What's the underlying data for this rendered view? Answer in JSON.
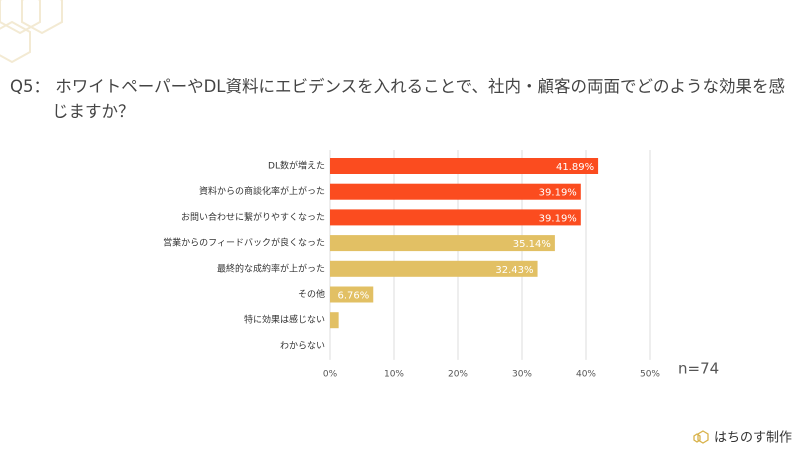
{
  "title": "Q5： ホワイトペーパーやDL資料にエビデンスを入れることで、社内・顧客の両面でどのような効果を感じますか？",
  "chart_data": {
    "type": "bar",
    "orientation": "horizontal",
    "categories": [
      "DL数が増えた",
      "資料からの商談化率が上がった",
      "お問い合わせに繋がりやすくなった",
      "営業からのフィードバックが良くなった",
      "最終的な成約率が上がった",
      "その他",
      "特に効果は感じない",
      "わからない"
    ],
    "values": [
      41.89,
      39.19,
      39.19,
      35.14,
      32.43,
      6.76,
      1.35,
      0
    ],
    "value_labels": [
      "41.89%",
      "39.19%",
      "39.19%",
      "35.14%",
      "32.43%",
      "6.76%",
      null,
      null
    ],
    "colors": [
      "#fb4c1f",
      "#fb4c1f",
      "#fb4c1f",
      "#e2c064",
      "#e2c064",
      "#e2c064",
      "#e2c064",
      "#e2c064"
    ],
    "xlim": [
      0,
      50
    ],
    "xticks": [
      {
        "value": 0,
        "label": "0%"
      },
      {
        "value": 10,
        "label": "10%"
      },
      {
        "value": 20,
        "label": "20%"
      },
      {
        "value": 30,
        "label": "30%"
      },
      {
        "value": 40,
        "label": "40%"
      },
      {
        "value": 50,
        "label": "50%"
      }
    ],
    "grid": true,
    "annotation": "n=74"
  },
  "footer": {
    "brand": "はちのす制作"
  }
}
